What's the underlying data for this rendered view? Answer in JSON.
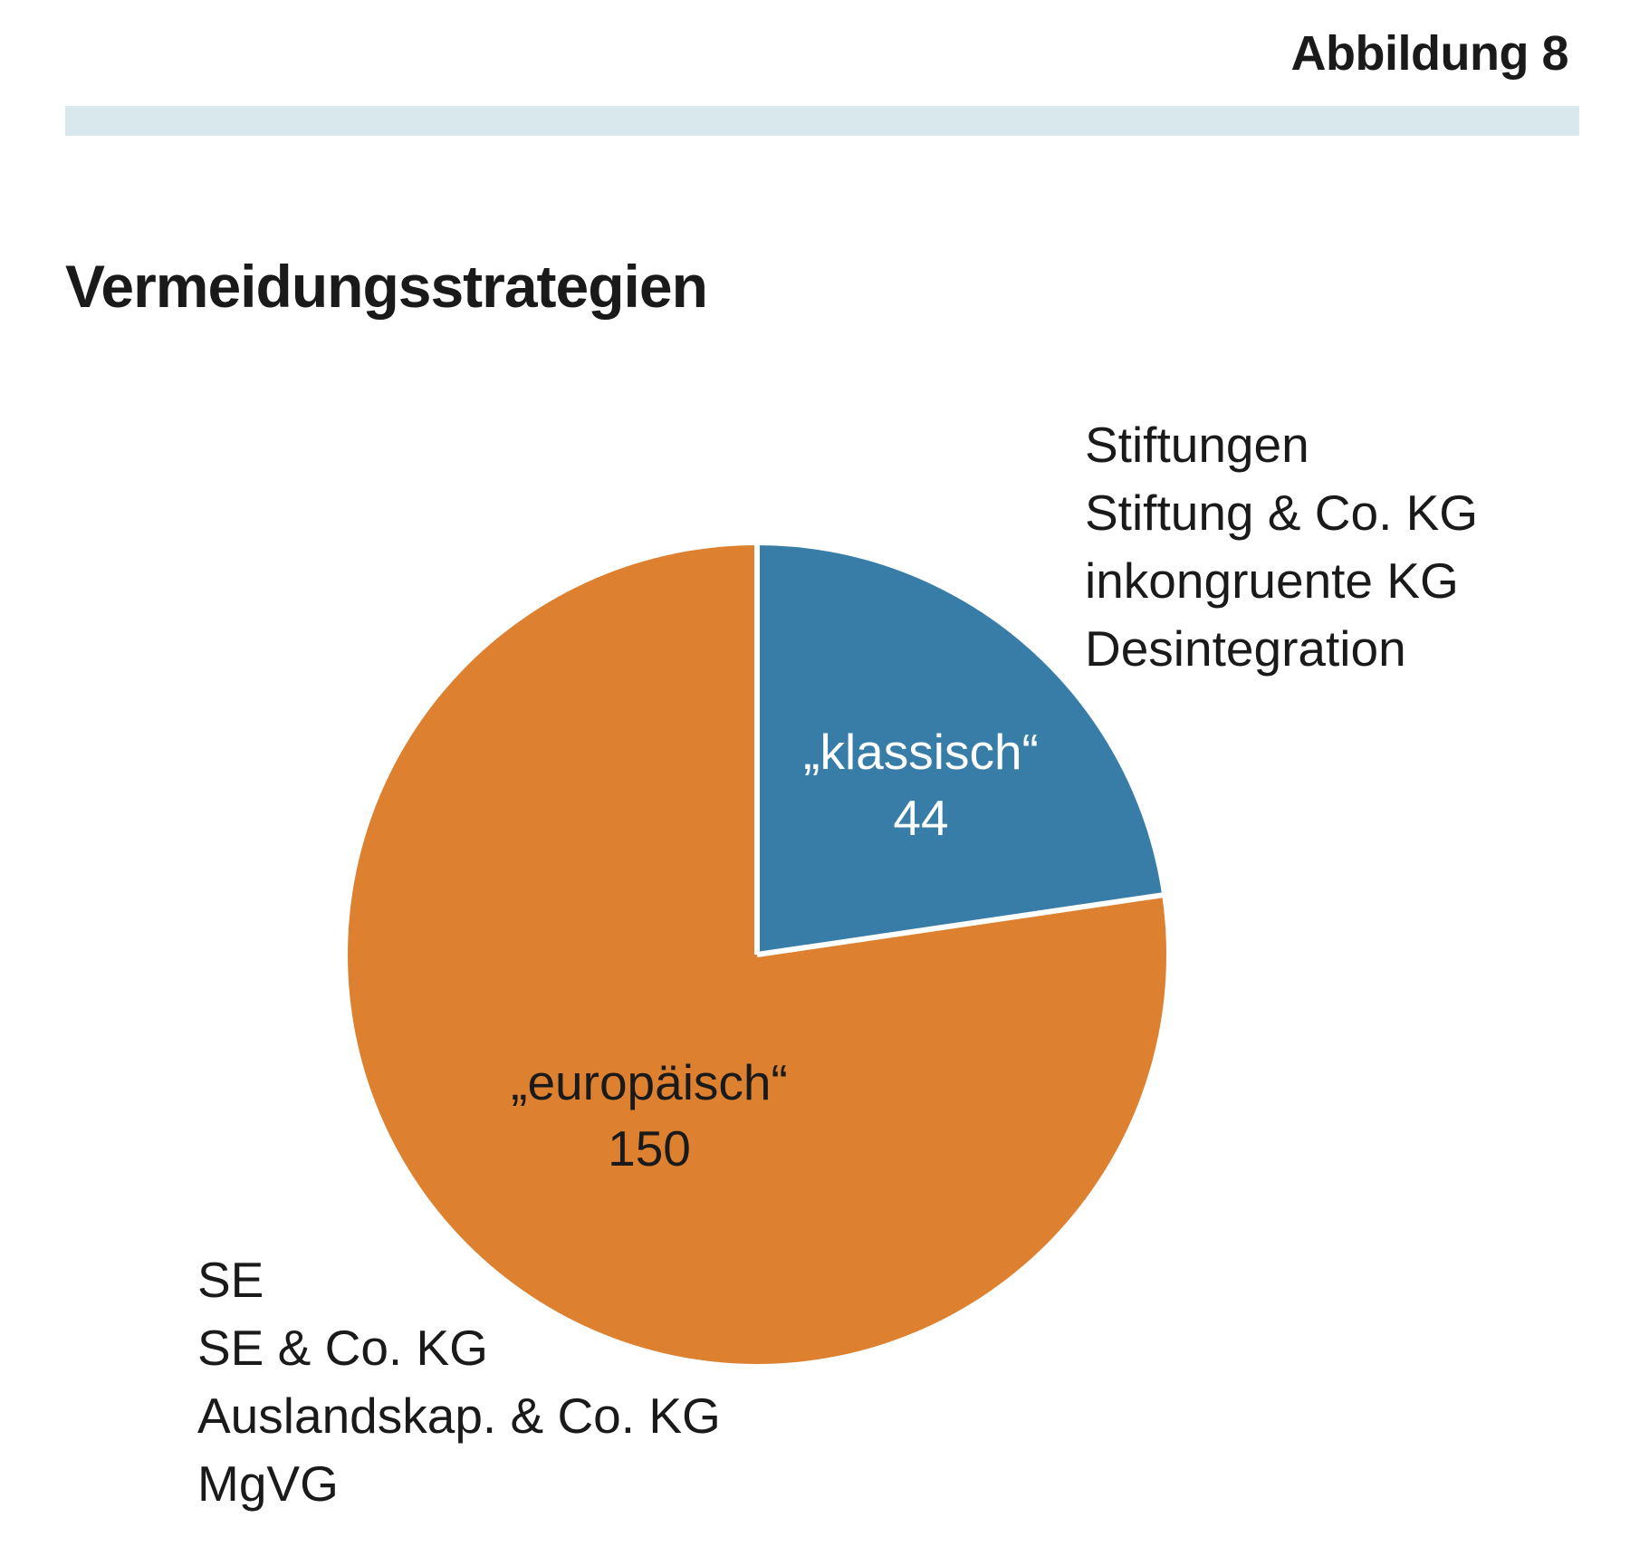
{
  "header": {
    "figure_label": "Abbildung 8"
  },
  "colors": {
    "rule": "#d9e8ec",
    "klassisch": "#387da8",
    "europaeisch": "#dd8131",
    "separator": "#ffffff"
  },
  "chart_data": {
    "type": "pie",
    "title": "Vermeidungsstrategien",
    "slices": [
      {
        "label": "„klassisch“",
        "value": 44,
        "value_label": "44",
        "color": "#387da8",
        "members": [
          "Stiftungen",
          "Stiftung & Co. KG",
          "inkongruente KG",
          "Desintegration"
        ]
      },
      {
        "label": "„europäisch“",
        "value": 150,
        "value_label": "150",
        "color": "#dd8131",
        "members": [
          "SE",
          "SE & Co. KG",
          "Auslandskap. & Co. KG",
          "MgVG"
        ]
      }
    ],
    "start_angle": "12 o'clock",
    "direction": "clockwise",
    "legend": "external text blocks beside slices"
  }
}
